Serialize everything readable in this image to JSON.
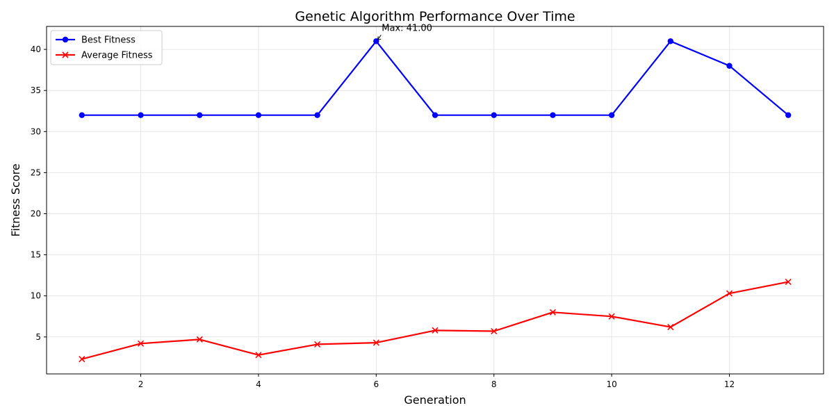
{
  "chart_data": {
    "type": "line",
    "title": "Genetic Algorithm Performance Over Time",
    "xlabel": "Generation",
    "ylabel": "Fitness Score",
    "x": [
      1,
      2,
      3,
      4,
      5,
      6,
      7,
      8,
      9,
      10,
      11,
      12,
      13
    ],
    "xlim": [
      0.4,
      13.6
    ],
    "ylim": [
      0.5,
      42.8
    ],
    "xticks": [
      2,
      4,
      6,
      8,
      10,
      12
    ],
    "yticks": [
      5,
      10,
      15,
      20,
      25,
      30,
      35,
      40
    ],
    "grid": true,
    "legend_position": "upper-left",
    "series": [
      {
        "name": "Best Fitness",
        "color": "#0000ff",
        "marker": "circle",
        "values": [
          32,
          32,
          32,
          32,
          32,
          41,
          32,
          32,
          32,
          32,
          41,
          38,
          32
        ]
      },
      {
        "name": "Average Fitness",
        "color": "#ff0000",
        "marker": "x",
        "values": [
          2.3,
          4.2,
          4.7,
          2.8,
          4.1,
          4.3,
          5.8,
          5.7,
          8.0,
          7.5,
          6.2,
          10.3,
          11.7
        ]
      }
    ],
    "annotation": {
      "text": "Max: 41.00",
      "x": 6,
      "y": 41
    }
  }
}
